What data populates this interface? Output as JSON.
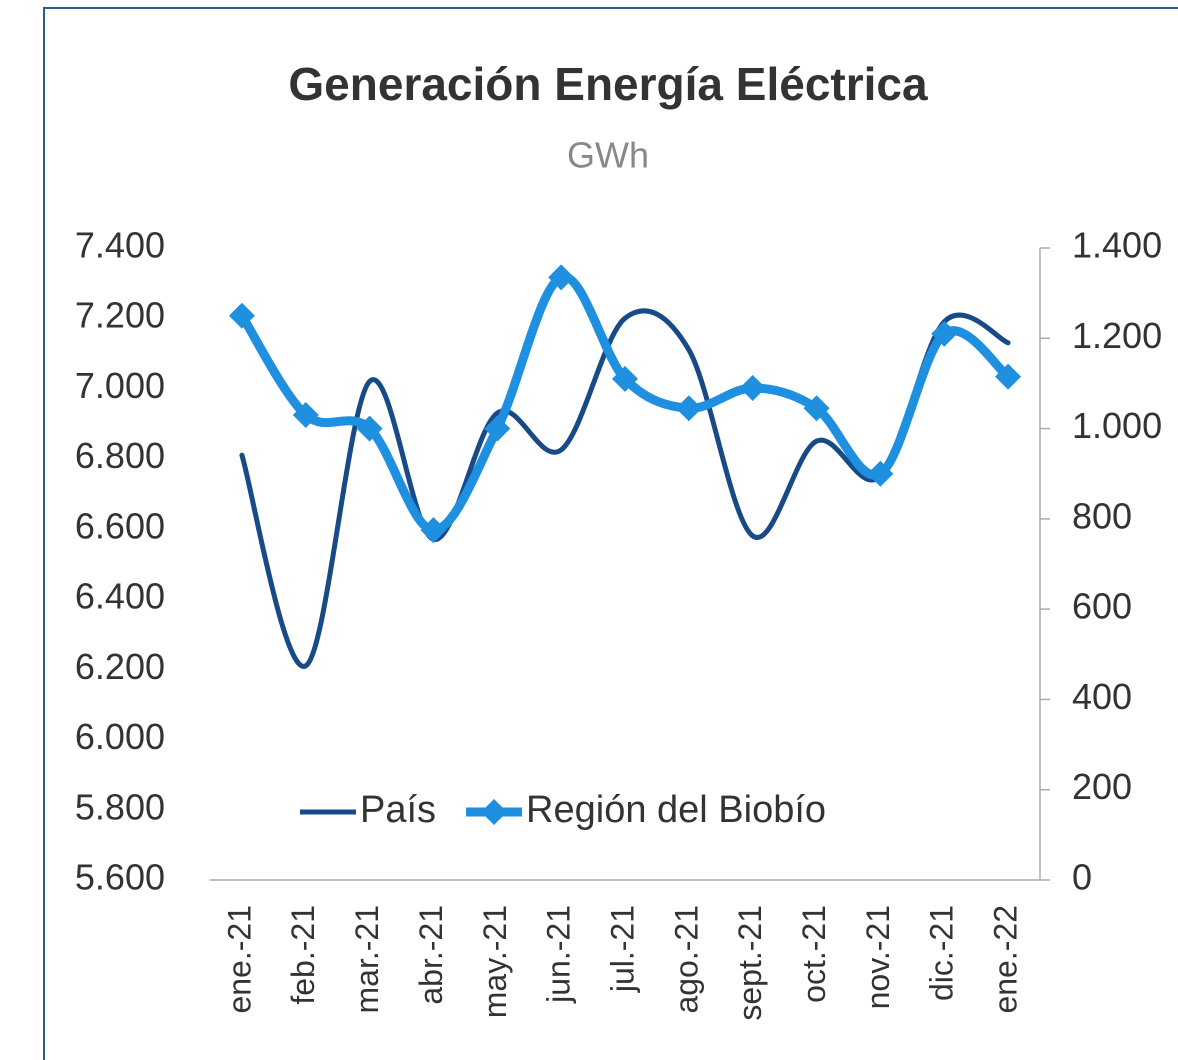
{
  "chart_data": {
    "type": "line",
    "title": "Generación Energía Eléctrica",
    "subtitle": "GWh",
    "categories": [
      "ene.-21",
      "feb.-21",
      "mar.-21",
      "abr.-21",
      "may.-21",
      "jun.-21",
      "jul.-21",
      "ago.-21",
      "sept.-21",
      "oct.-21",
      "nov.-21",
      "dic.-21",
      "ene.-22"
    ],
    "series": [
      {
        "name": "País",
        "color": "#174a86",
        "axis": "y",
        "marker": "none",
        "values": [
          6810,
          6210,
          7020,
          6570,
          6930,
          6825,
          7200,
          7110,
          6580,
          6850,
          6750,
          7190,
          7130
        ]
      },
      {
        "name": "Región del Biobío",
        "color": "#1f8fe0",
        "axis": "y2",
        "marker": "diamond",
        "values": [
          1250,
          1030,
          1000,
          775,
          1000,
          1335,
          1110,
          1045,
          1090,
          1045,
          900,
          1210,
          1115
        ]
      }
    ],
    "ylim": [
      5600,
      7400
    ],
    "yticks": [
      {
        "value": 5600,
        "label": "5.600"
      },
      {
        "value": 5800,
        "label": "5.800"
      },
      {
        "value": 6000,
        "label": "6.000"
      },
      {
        "value": 6200,
        "label": "6.200"
      },
      {
        "value": 6400,
        "label": "6.400"
      },
      {
        "value": 6600,
        "label": "6.600"
      },
      {
        "value": 6800,
        "label": "6.800"
      },
      {
        "value": 7000,
        "label": "7.000"
      },
      {
        "value": 7200,
        "label": "7.200"
      },
      {
        "value": 7400,
        "label": "7.400"
      }
    ],
    "y2lim": [
      0,
      1400
    ],
    "y2ticks": [
      0,
      200,
      400,
      600,
      800,
      {
        "value": 1000,
        "label": "1.000"
      },
      {
        "value": 1200,
        "label": "1.200"
      },
      {
        "value": 1400,
        "label": "1.400"
      }
    ],
    "grid": false,
    "legend": "bottom"
  }
}
